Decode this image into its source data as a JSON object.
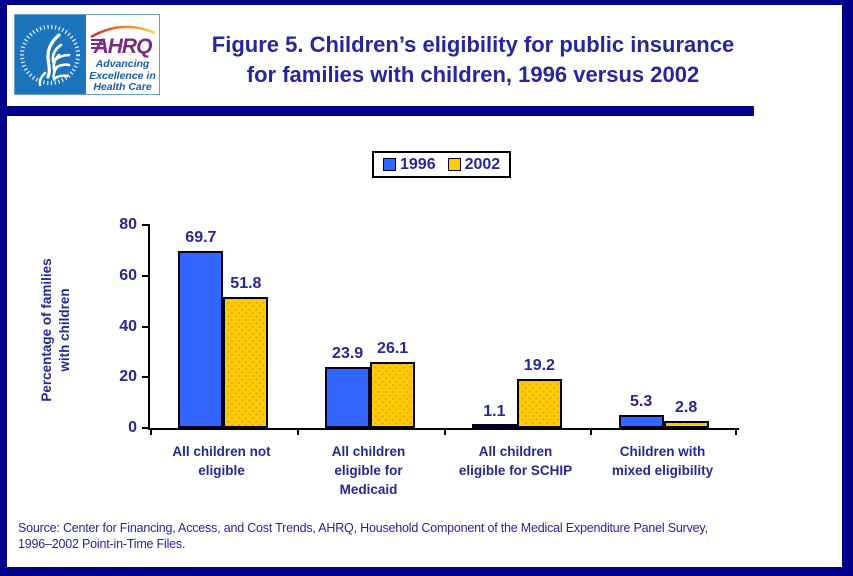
{
  "colors": {
    "page_border": "#00008B",
    "divider": "#00008B",
    "title_text": "#2626A0",
    "axis_text": "#26269C",
    "bar_1996": "#3366FF",
    "bar_2002": "#FFCC00",
    "seal_blue": "#1C75BC",
    "ahrq_purple": "#7B2982",
    "tagline_blue": "#1A5DAD"
  },
  "logo": {
    "acronym": "AHRQ",
    "tagline_line1": "Advancing",
    "tagline_line2": "Excellence in",
    "tagline_line3": "Health Care"
  },
  "header": {
    "title_line1": "Figure 5. Children’s eligibility for public insurance",
    "title_line2": "for families with children, 1996 versus 2002"
  },
  "chart_data": {
    "type": "bar",
    "title": "Figure 5. Children’s eligibility for public insurance for families with children, 1996 versus 2002",
    "categories": [
      "All children not eligible",
      "All children eligible for Medicaid",
      "All children eligible for SCHIP",
      "Children with mixed eligibility"
    ],
    "category_label_lines": [
      [
        "All children not",
        "eligible"
      ],
      [
        "All children",
        "eligible for",
        "Medicaid"
      ],
      [
        "All children",
        "eligible for SCHIP"
      ],
      [
        "Children with",
        "mixed eligibility"
      ]
    ],
    "series": [
      {
        "name": "1996",
        "color": "#3366FF",
        "values": [
          69.7,
          23.9,
          1.1,
          5.3
        ]
      },
      {
        "name": "2002",
        "color": "#FFCC00",
        "values": [
          51.8,
          26.1,
          19.2,
          2.8
        ]
      }
    ],
    "xlabel": "",
    "ylabel": "Percentage of families with children",
    "ylabel_line1": "Percentage of families",
    "ylabel_line2": "with children",
    "ylim": [
      0,
      80
    ],
    "yticks": [
      0,
      20,
      40,
      60,
      80
    ],
    "grid": false,
    "legend_position": "top-center",
    "value_labels": true
  },
  "footer": {
    "source_line1": "Source: Center for Financing, Access, and Cost Trends, AHRQ, Household Component of the Medical Expenditure Panel Survey,",
    "source_line2": "1996–2002 Point-in-Time Files."
  }
}
